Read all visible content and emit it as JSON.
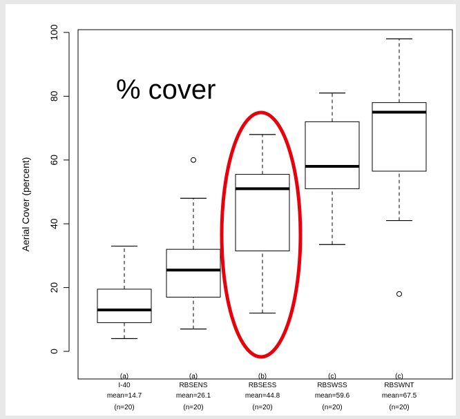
{
  "chart_data": {
    "type": "box",
    "title": "",
    "xlabel": "",
    "ylabel": "Aerial Cover (percent)",
    "ylim": [
      -8,
      102
    ],
    "yticks": [
      0,
      20,
      40,
      60,
      80,
      100
    ],
    "grid": false,
    "annotation": "% cover",
    "highlight": {
      "category": "RBSESS",
      "shape": "ellipse",
      "color": "#e8000b"
    },
    "groups": [
      {
        "letter": "(a)",
        "label": "I-40",
        "mean_label": "mean=14.7",
        "n_label": "(n=20)",
        "whisker_low": 4,
        "q1": 9,
        "median": 13,
        "q3": 19.5,
        "whisker_high": 33,
        "outliers": []
      },
      {
        "letter": "(a)",
        "label": "RBSENS",
        "mean_label": "mean=26.1",
        "n_label": "(n=20)",
        "whisker_low": 7,
        "q1": 17,
        "median": 25.5,
        "q3": 32,
        "whisker_high": 48,
        "outliers": [
          60
        ]
      },
      {
        "letter": "(b)",
        "label": "RBSESS",
        "mean_label": "mean=44.8",
        "n_label": "(n=20)",
        "whisker_low": 12,
        "q1": 31.5,
        "median": 51,
        "q3": 55.5,
        "whisker_high": 68,
        "outliers": []
      },
      {
        "letter": "(c)",
        "label": "RBSWSS",
        "mean_label": "mean=59.6",
        "n_label": "(n=20)",
        "whisker_low": 33.5,
        "q1": 51,
        "median": 58,
        "q3": 72,
        "whisker_high": 81,
        "outliers": []
      },
      {
        "letter": "(c)",
        "label": "RBSWNT",
        "mean_label": "mean=67.5",
        "n_label": "(n=20)",
        "whisker_low": 41,
        "q1": 56.5,
        "median": 75,
        "q3": 78,
        "whisker_high": 98,
        "outliers": [
          18
        ]
      }
    ]
  }
}
